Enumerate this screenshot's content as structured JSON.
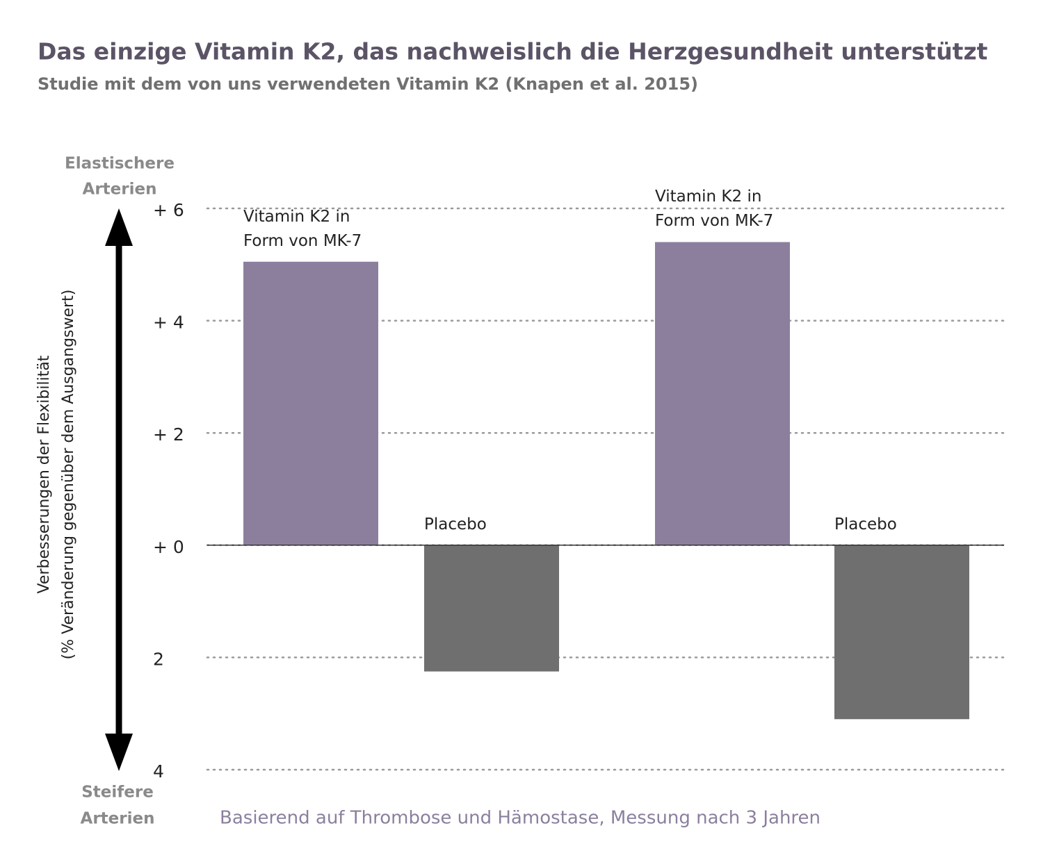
{
  "chart_data": {
    "type": "bar",
    "title": "Das einzige Vitamin K2, das nachweislich die Herzgesundheit unterstützt",
    "subtitle": "Studie mit dem von uns verwendeten Vitamin K2 (Knapen et al. 2015)",
    "ylabel": [
      "Verbesserungen der Flexibilität",
      "(% Veränderung gegenüber dem Ausgangswert)"
    ],
    "top_note": [
      "Elastischere",
      "Arterien"
    ],
    "bottom_note": [
      "Steifere",
      "Arterien"
    ],
    "footnote": "Basierend auf Thrombose und Hämostase, Messung nach 3 Jahren",
    "categories": [
      "Vitamin K2 in Form von MK-7",
      "Placebo",
      "Vitamin K2 in Form von MK-7",
      "Placebo"
    ],
    "values": [
      5.05,
      -2.25,
      5.4,
      -3.1
    ],
    "colors": [
      "#8c7f9e",
      "#6f6f6f",
      "#8c7f9e",
      "#6f6f6f"
    ],
    "ylim": [
      -4,
      6
    ],
    "yticks": [
      {
        "value": 6,
        "label": "+ 6"
      },
      {
        "value": 4,
        "label": "+ 4"
      },
      {
        "value": 2,
        "label": "+ 2"
      },
      {
        "value": 0,
        "label": "+ 0"
      },
      {
        "value": -2,
        "label": "2"
      },
      {
        "value": -4,
        "label": "4"
      }
    ],
    "grid": true
  }
}
